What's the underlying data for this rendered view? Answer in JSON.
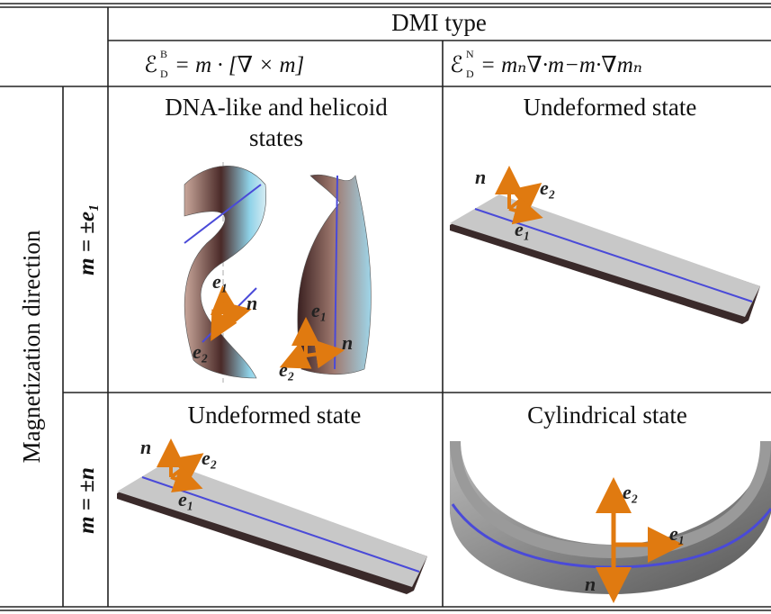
{
  "header": {
    "title": "DMI type",
    "columns": [
      {
        "symbol": "ℰ",
        "sup": "B",
        "sub": "D",
        "rhs": "= m · [∇ × m]"
      },
      {
        "symbol": "ℰ",
        "sup": "N",
        "sub": "D",
        "rhs": "= mₙ∇·m−m·∇mₙ"
      }
    ]
  },
  "row_header": "Magnetization direction",
  "rows": [
    {
      "label": "m = ±e₁",
      "cells": [
        {
          "title": [
            "DNA-like and helicoid",
            "states"
          ],
          "labels": [
            "e₁",
            "n",
            "e₂",
            "e₁",
            "n",
            "e₂"
          ]
        },
        {
          "title": [
            "Undeformed state"
          ],
          "labels": [
            "n",
            "e₂",
            "e₁"
          ]
        }
      ]
    },
    {
      "label": "m = ±n",
      "cells": [
        {
          "title": [
            "Undeformed state"
          ],
          "labels": [
            "n",
            "e₂",
            "e₁"
          ]
        },
        {
          "title": [
            "Cylindrical state"
          ],
          "labels": [
            "e₂",
            "e₁",
            "n"
          ]
        }
      ]
    }
  ]
}
